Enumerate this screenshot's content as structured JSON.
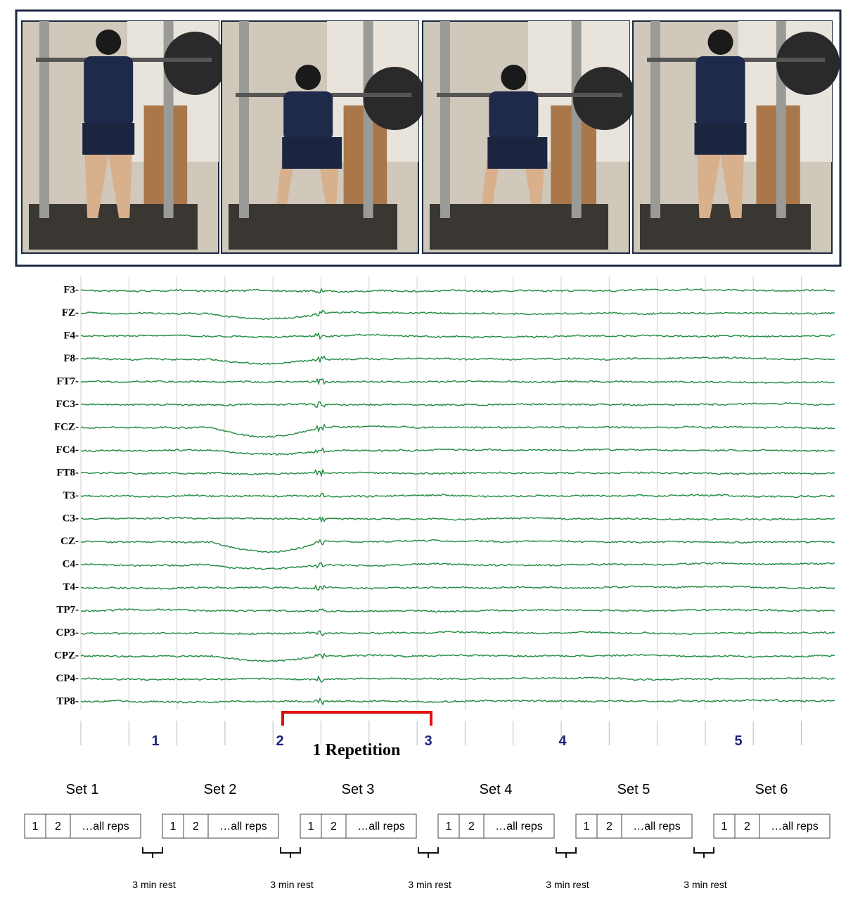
{
  "eeg": {
    "channels": [
      "F3-",
      "FZ-",
      "F4-",
      "F8-",
      "FT7-",
      "FC3-",
      "FCZ-",
      "FC4-",
      "FT8-",
      "T3-",
      "C3-",
      "CZ-",
      "C4-",
      "T4-",
      "TP7-",
      "CP3-",
      "CPZ-",
      "CP4-",
      "TP8-"
    ],
    "markers": [
      "1",
      "2",
      "3",
      "4",
      "5"
    ],
    "repetition_label": "1 Repetition"
  },
  "protocol": {
    "sets": [
      {
        "label": "Set 1",
        "cells": [
          "1",
          "2",
          "…all reps"
        ]
      },
      {
        "label": "Set 2",
        "cells": [
          "1",
          "2",
          "…all reps"
        ]
      },
      {
        "label": "Set 3",
        "cells": [
          "1",
          "2",
          "…all reps"
        ]
      },
      {
        "label": "Set 4",
        "cells": [
          "1",
          "2",
          "…all reps"
        ]
      },
      {
        "label": "Set 5",
        "cells": [
          "1",
          "2",
          "…all reps"
        ]
      },
      {
        "label": "Set 6",
        "cells": [
          "1",
          "2",
          "…all reps"
        ]
      }
    ],
    "rests": [
      "3 min rest",
      "3 min rest",
      "3 min rest",
      "3 min rest",
      "3 min rest"
    ]
  }
}
